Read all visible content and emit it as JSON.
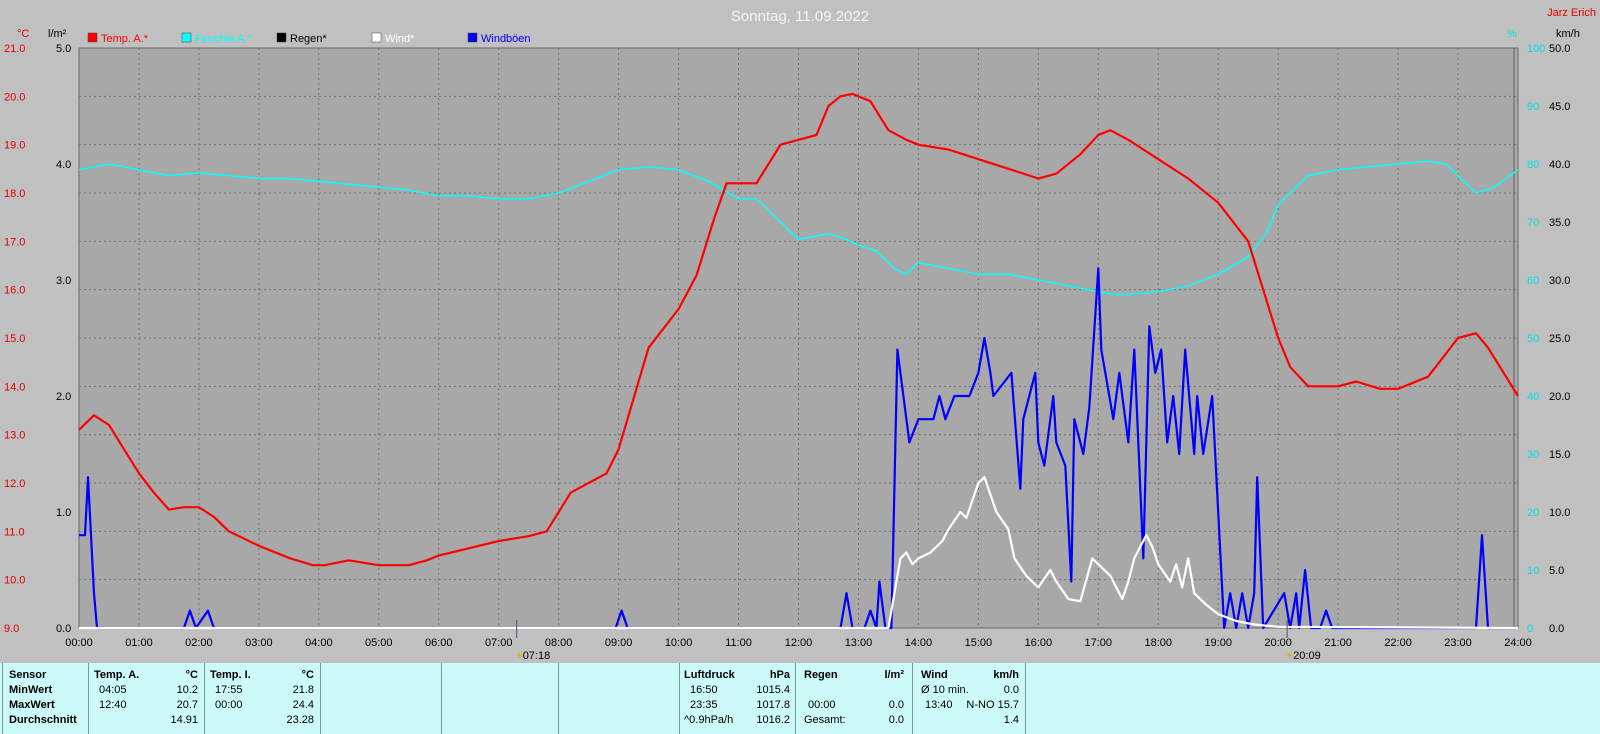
{
  "chart_data": {
    "type": "line",
    "title": "Sonntag, 11.09.2022",
    "station": "Jarz Erich",
    "axes": {
      "temp": {
        "unit": "°C",
        "ylim": [
          9.0,
          21.0
        ],
        "ticks": [
          "21.0",
          "20.0",
          "19.0",
          "18.0",
          "17.0",
          "16.0",
          "15.0",
          "14.0",
          "13.0",
          "12.0",
          "11.0",
          "10.0",
          "9.0"
        ]
      },
      "rain": {
        "unit": "l/m²",
        "ylim": [
          0,
          5
        ],
        "ticks": [
          "5.0",
          "4.0",
          "3.0",
          "2.0",
          "1.0",
          "0.0"
        ]
      },
      "humidity": {
        "unit": "%",
        "ylim": [
          0,
          100
        ],
        "ticks": [
          "100",
          "90",
          "80",
          "70",
          "60",
          "50",
          "40",
          "30",
          "20",
          "10",
          "0"
        ]
      },
      "wind": {
        "unit": "km/h",
        "ylim": [
          0,
          50
        ],
        "ticks": [
          "50.0",
          "45.0",
          "40.0",
          "35.0",
          "30.0",
          "25.0",
          "20.0",
          "15.0",
          "10.0",
          "5.0",
          "0.0"
        ]
      }
    },
    "x_ticks": [
      "00:00",
      "01:00",
      "02:00",
      "03:00",
      "04:00",
      "05:00",
      "06:00",
      "07:00",
      "08:00",
      "09:00",
      "10:00",
      "11:00",
      "12:00",
      "13:00",
      "14:00",
      "15:00",
      "16:00",
      "17:00",
      "18:00",
      "19:00",
      "20:00",
      "21:00",
      "22:00",
      "23:00",
      "24:00"
    ],
    "sunrise": {
      "label": "07:18",
      "hour": 7.3
    },
    "sunset": {
      "label": "20:09",
      "hour": 20.15
    },
    "legend": [
      {
        "name": "Temp. A.*",
        "color": "#ff0000"
      },
      {
        "name": "Feuchte A.*",
        "color": "#00ffff"
      },
      {
        "name": "Regen*",
        "color": "#000000"
      },
      {
        "name": "Wind*",
        "color": "#ffffff"
      },
      {
        "name": "Windböen",
        "color": "#0000ff"
      }
    ],
    "series": [
      {
        "name": "Temp. A.*",
        "axis": "temp",
        "color": "#ff0000",
        "x": [
          0,
          0.25,
          0.5,
          0.75,
          1,
          1.25,
          1.5,
          1.75,
          2,
          2.25,
          2.5,
          3,
          3.5,
          3.9,
          4.1,
          4.5,
          5,
          5.5,
          5.8,
          6,
          6.5,
          7,
          7.5,
          7.8,
          8,
          8.2,
          8.5,
          8.8,
          9,
          9.5,
          10,
          10.3,
          10.6,
          10.8,
          11,
          11.3,
          11.5,
          11.7,
          12,
          12.3,
          12.5,
          12.7,
          12.9,
          13.2,
          13.5,
          13.8,
          14,
          14.5,
          15,
          15.5,
          16,
          16.3,
          16.7,
          17,
          17.2,
          17.5,
          18,
          18.5,
          19,
          19.5,
          20,
          20.2,
          20.5,
          21,
          21.3,
          21.7,
          22,
          22.5,
          23,
          23.3,
          23.5,
          23.8,
          24
        ],
        "y": [
          13.1,
          13.4,
          13.2,
          12.7,
          12.2,
          11.8,
          11.45,
          11.5,
          11.5,
          11.3,
          11.0,
          10.7,
          10.45,
          10.3,
          10.3,
          10.4,
          10.3,
          10.3,
          10.4,
          10.5,
          10.65,
          10.8,
          10.9,
          11.0,
          11.4,
          11.8,
          12.0,
          12.2,
          12.7,
          14.8,
          15.6,
          16.3,
          17.5,
          18.2,
          18.2,
          18.2,
          18.6,
          19.0,
          19.1,
          19.2,
          19.8,
          20.0,
          20.05,
          19.9,
          19.3,
          19.1,
          19.0,
          18.9,
          18.7,
          18.5,
          18.3,
          18.4,
          18.8,
          19.2,
          19.3,
          19.1,
          18.7,
          18.3,
          17.8,
          17.0,
          15.0,
          14.4,
          14.0,
          14.0,
          14.1,
          13.95,
          13.95,
          14.2,
          15.0,
          15.1,
          14.8,
          14.2,
          13.8
        ]
      },
      {
        "name": "Feuchte A.*",
        "axis": "humidity",
        "color": "#00ffff",
        "x": [
          0,
          0.5,
          1,
          1.5,
          2,
          2.5,
          3,
          3.5,
          4,
          4.5,
          5,
          5.5,
          6,
          6.5,
          7,
          7.5,
          8,
          8.5,
          9,
          9.5,
          10,
          10.5,
          11,
          11.3,
          11.7,
          12,
          12.5,
          12.8,
          13,
          13.3,
          13.6,
          13.8,
          14,
          14.5,
          15,
          15.5,
          16,
          16.5,
          17,
          17.3,
          17.5,
          18,
          18.5,
          19,
          19.5,
          19.8,
          20,
          20.5,
          21,
          21.5,
          22,
          22.5,
          22.8,
          23,
          23.3,
          23.6,
          24
        ],
        "y": [
          79,
          80,
          79,
          78,
          78.5,
          78,
          77.5,
          77.5,
          77,
          76.5,
          76,
          75.5,
          74.5,
          74.5,
          74,
          74,
          75,
          77,
          79,
          79.5,
          79,
          77,
          74,
          74,
          70,
          67,
          68,
          67,
          66,
          65,
          62,
          61,
          63,
          62,
          61,
          61,
          60,
          59,
          58,
          57.5,
          57.5,
          58,
          59,
          61,
          64,
          68,
          73,
          78,
          79,
          79.5,
          80,
          80.5,
          80,
          78,
          75,
          76,
          79
        ]
      },
      {
        "name": "Wind*",
        "axis": "wind",
        "color": "#ffffff",
        "x": [
          0,
          13.5,
          13.6,
          13.7,
          13.8,
          13.9,
          14.0,
          14.2,
          14.4,
          14.5,
          14.7,
          14.8,
          14.9,
          15.0,
          15.1,
          15.3,
          15.5,
          15.6,
          15.8,
          16.0,
          16.2,
          16.3,
          16.5,
          16.7,
          16.9,
          17.0,
          17.2,
          17.4,
          17.5,
          17.6,
          17.7,
          17.8,
          17.9,
          18.0,
          18.2,
          18.3,
          18.4,
          18.5,
          18.6,
          18.8,
          19.0,
          19.3,
          19.6,
          20.0,
          24
        ],
        "y": [
          0,
          0,
          3,
          6,
          6.5,
          5.5,
          6,
          6.5,
          7.5,
          8.5,
          10,
          9.5,
          11,
          12.5,
          13,
          10,
          8.5,
          6,
          4.5,
          3.5,
          5,
          4,
          2.5,
          2.3,
          6,
          5.5,
          4.5,
          2.5,
          4,
          6,
          7,
          8,
          7,
          5.5,
          4,
          5.5,
          3.5,
          6,
          3,
          2,
          1.2,
          0.6,
          0.3,
          0.1,
          0
        ]
      },
      {
        "name": "Windböen",
        "axis": "wind",
        "color": "#0000ff",
        "x": [
          0,
          0.1,
          0.15,
          0.25,
          0.3,
          0.4,
          0.5,
          1.75,
          1.85,
          1.95,
          2.15,
          2.25,
          2.35,
          8.95,
          9.05,
          9.15,
          12.7,
          12.8,
          12.9,
          13.1,
          13.2,
          13.3,
          13.35,
          13.45,
          13.55,
          13.65,
          13.75,
          13.85,
          14.0,
          14.25,
          14.35,
          14.45,
          14.6,
          14.85,
          15.0,
          15.1,
          15.2,
          15.25,
          15.55,
          15.7,
          15.75,
          15.85,
          15.95,
          16.0,
          16.1,
          16.25,
          16.3,
          16.45,
          16.55,
          16.6,
          16.75,
          16.85,
          17.0,
          17.05,
          17.25,
          17.35,
          17.5,
          17.6,
          17.75,
          17.85,
          17.95,
          18.05,
          18.15,
          18.25,
          18.35,
          18.45,
          18.6,
          18.65,
          18.75,
          18.9,
          19.1,
          19.2,
          19.3,
          19.4,
          19.5,
          19.6,
          19.65,
          19.75,
          20.1,
          20.2,
          20.3,
          20.35,
          20.45,
          20.55,
          20.7,
          20.8,
          20.9,
          23.3,
          23.4,
          23.5,
          23.6,
          24
        ],
        "y": [
          8,
          8,
          13,
          3,
          0,
          0,
          0,
          0,
          1.5,
          0,
          1.5,
          0,
          0,
          0,
          1.5,
          0,
          0,
          3,
          0,
          0,
          1.5,
          0,
          4,
          0,
          0,
          24,
          20,
          16,
          18,
          18,
          20,
          18,
          20,
          20,
          22,
          25,
          22,
          20,
          22,
          12,
          18,
          20,
          22,
          16,
          14,
          20,
          16,
          14,
          4,
          18,
          15,
          19,
          31,
          24,
          18,
          22,
          16,
          24,
          6,
          26,
          22,
          24,
          16,
          20,
          15,
          24,
          15,
          20,
          15,
          20,
          0,
          3,
          0,
          3,
          0,
          3,
          13,
          0,
          3,
          0,
          3,
          0,
          5,
          0,
          0,
          1.5,
          0,
          0,
          8,
          0,
          0,
          0
        ]
      }
    ]
  },
  "stats": {
    "temp_a": {
      "header_sensor": "Sensor",
      "header": "Temp. A.",
      "unit": "°C",
      "min_label": "MinWert",
      "max_label": "MaxWert",
      "avg_label": "Durchschnitt",
      "min_time": "04:05",
      "min_val": "10.2",
      "max_time": "12:40",
      "max_val": "20.7",
      "avg": "14.91"
    },
    "temp_i": {
      "header": "Temp. I.",
      "unit": "°C",
      "min_time": "17:55",
      "min_val": "21.8",
      "max_time": "00:00",
      "max_val": "24.4",
      "avg": "23.28"
    },
    "pressure": {
      "header": "Luftdruck",
      "unit": "hPa",
      "r1_time": "16:50",
      "r1_val": "1015.4",
      "r2_time": "23:35",
      "r2_val": "1017.8",
      "r3_time": "^0.9hPa/h",
      "r3_val": "1016.2"
    },
    "rain": {
      "header": "Regen",
      "unit": "l/m²",
      "r2_time": "00:00",
      "r2_val": "0.0",
      "r3_label": "Gesamt:",
      "r3_val": "0.0"
    },
    "wind": {
      "header": "Wind",
      "unit": "km/h",
      "r1_label": "Ø 10 min.",
      "r1_val": "0.0",
      "r2_time": "13:40",
      "r2_val": "N-NO 15.7",
      "r3_val": "1.4"
    }
  }
}
